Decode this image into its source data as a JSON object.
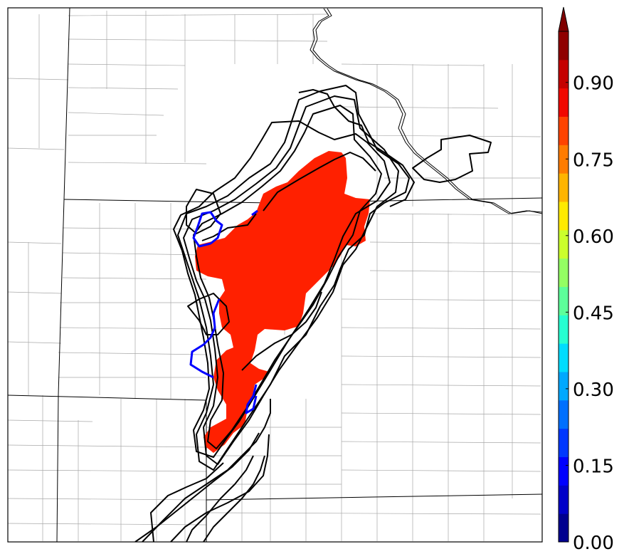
{
  "colorbar": {
    "ticks": [
      "0.00",
      "0.15",
      "0.30",
      "0.45",
      "0.60",
      "0.75",
      "0.90"
    ],
    "tick_values": [
      0.0,
      0.15,
      0.3,
      0.45,
      0.6,
      0.75,
      0.9
    ],
    "range": [
      0.0,
      1.0
    ],
    "extend": "max",
    "colormap": "jet",
    "bin_colors": [
      "#00008f",
      "#0000c8",
      "#0000ff",
      "#0038ff",
      "#0070ff",
      "#00a8ff",
      "#00dcfe",
      "#26ffd1",
      "#5dff9a",
      "#94ff63",
      "#cbff2c",
      "#ffea00",
      "#ffb400",
      "#ff7c00",
      "#ff4400",
      "#f10800",
      "#c50000",
      "#8f0000"
    ],
    "over_color": "#800000"
  },
  "colors": {
    "probability_fill": "#ff2000",
    "member_contour": "#000000",
    "observed_contour": "#0000ff",
    "county_lines": "#a8a8a8",
    "state_lines": "#000000"
  }
}
